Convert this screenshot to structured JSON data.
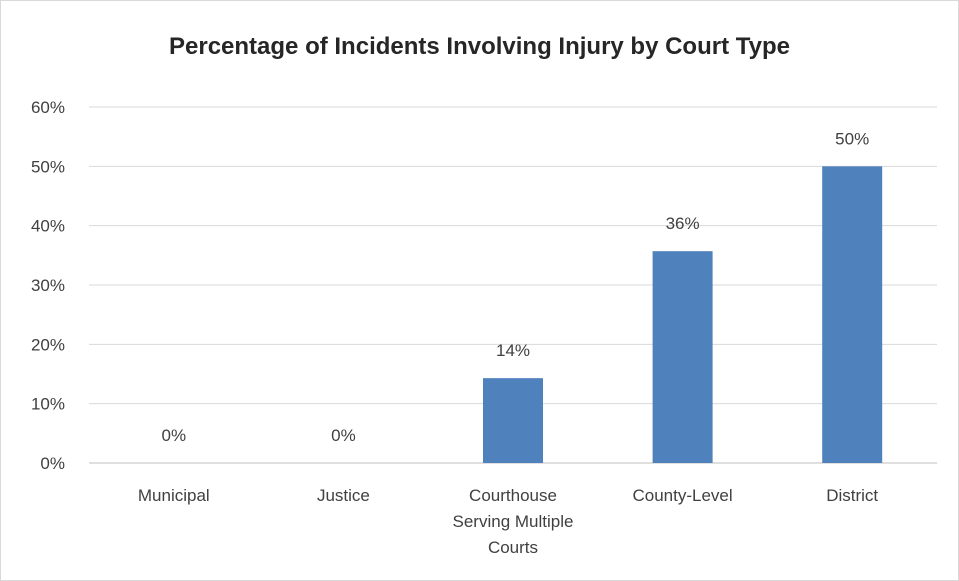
{
  "chart_data": {
    "type": "bar",
    "title": "Percentage of Incidents Involving Injury by Court Type",
    "xlabel": "",
    "ylabel": "",
    "categories": [
      [
        "Municipal"
      ],
      [
        "Justice"
      ],
      [
        "Courthouse",
        "Serving Multiple",
        "Courts"
      ],
      [
        "County-Level"
      ],
      [
        "District"
      ]
    ],
    "values": [
      0,
      0,
      14.3,
      35.7,
      50
    ],
    "data_labels": [
      "0%",
      "0%",
      "14%",
      "36%",
      "50%"
    ],
    "ylim": [
      0,
      60
    ],
    "yticks": [
      0,
      10,
      20,
      30,
      40,
      50,
      60
    ],
    "ytick_labels": [
      "0%",
      "10%",
      "20%",
      "30%",
      "40%",
      "50%",
      "60%"
    ],
    "grid": true,
    "legend": "none",
    "colors": {
      "bar": "#4f81bd",
      "grid": "#d9d9d9",
      "axis": "#bfbfbf",
      "text": "#404040",
      "title": "#262626"
    }
  }
}
